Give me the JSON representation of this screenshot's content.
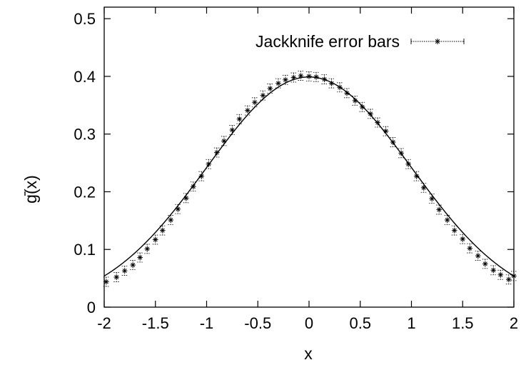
{
  "chart_data": {
    "type": "line",
    "xlabel": "x",
    "ylabel": "g(x)",
    "ylabel_overline": true,
    "xlim": [
      -2,
      2
    ],
    "ylim": [
      0,
      0.52
    ],
    "xticks": [
      -2,
      -1.5,
      -1,
      -0.5,
      0,
      0.5,
      1,
      1.5,
      2
    ],
    "xtick_labels": [
      "-2",
      "-1.5",
      "-1",
      "-0.5",
      "0",
      "0.5",
      "1",
      "1.5",
      "2"
    ],
    "yticks": [
      0,
      0.1,
      0.2,
      0.3,
      0.4,
      0.5
    ],
    "ytick_labels": [
      "0",
      "0.1",
      "0.2",
      "0.3",
      "0.4",
      "0.5"
    ],
    "grid": false,
    "legend_position": "top-right",
    "series": [
      {
        "name": "Jackknife error bars",
        "style": "dotted error bars with asterisk markers",
        "color": "#000000",
        "x": [
          -1.98,
          -1.88,
          -1.8,
          -1.72,
          -1.65,
          -1.58,
          -1.5,
          -1.43,
          -1.35,
          -1.28,
          -1.2,
          -1.13,
          -1.05,
          -0.98,
          -0.9,
          -0.83,
          -0.75,
          -0.68,
          -0.6,
          -0.53,
          -0.45,
          -0.38,
          -0.3,
          -0.23,
          -0.15,
          -0.08,
          0.0,
          0.07,
          0.15,
          0.22,
          0.3,
          0.37,
          0.45,
          0.52,
          0.6,
          0.67,
          0.75,
          0.82,
          0.9,
          0.97,
          1.05,
          1.12,
          1.2,
          1.27,
          1.35,
          1.42,
          1.5,
          1.57,
          1.65,
          1.72,
          1.8,
          1.87,
          1.95,
          2.0
        ],
        "y": [
          0.044,
          0.052,
          0.063,
          0.073,
          0.086,
          0.101,
          0.117,
          0.133,
          0.151,
          0.17,
          0.189,
          0.209,
          0.227,
          0.248,
          0.268,
          0.288,
          0.307,
          0.326,
          0.341,
          0.355,
          0.367,
          0.379,
          0.388,
          0.394,
          0.398,
          0.401,
          0.4,
          0.399,
          0.395,
          0.388,
          0.381,
          0.371,
          0.358,
          0.347,
          0.335,
          0.32,
          0.305,
          0.286,
          0.267,
          0.248,
          0.227,
          0.207,
          0.188,
          0.169,
          0.151,
          0.133,
          0.118,
          0.102,
          0.089,
          0.075,
          0.064,
          0.056,
          0.048,
          0.054
        ],
        "err": 0.008
      },
      {
        "name": "",
        "style": "solid line",
        "color": "#000000",
        "function": "standard normal density"
      }
    ]
  }
}
